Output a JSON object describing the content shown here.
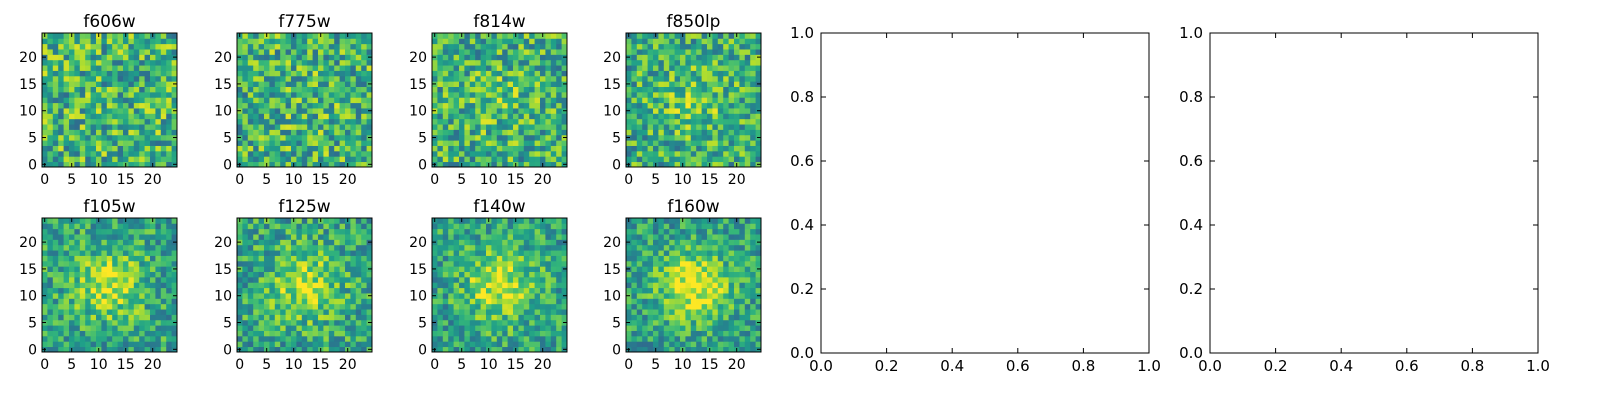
{
  "chart_data": [
    {
      "type": "heatmap",
      "title": "f606w",
      "x_ticks": [
        "0",
        "5",
        "10",
        "15",
        "20"
      ],
      "y_ticks": [
        "0",
        "5",
        "10",
        "15",
        "20"
      ],
      "xlim": [
        -0.5,
        24.5
      ],
      "ylim": [
        -0.5,
        24.5
      ],
      "colormap": "viridis",
      "grid": false,
      "value_seed": 11,
      "center_peak": 0.0
    },
    {
      "type": "heatmap",
      "title": "f775w",
      "x_ticks": [
        "0",
        "5",
        "10",
        "15",
        "20"
      ],
      "y_ticks": [
        "0",
        "5",
        "10",
        "15",
        "20"
      ],
      "xlim": [
        -0.5,
        24.5
      ],
      "ylim": [
        -0.5,
        24.5
      ],
      "colormap": "viridis",
      "grid": false,
      "value_seed": 23,
      "center_peak": 0.05
    },
    {
      "type": "heatmap",
      "title": "f814w",
      "x_ticks": [
        "0",
        "5",
        "10",
        "15",
        "20"
      ],
      "y_ticks": [
        "0",
        "5",
        "10",
        "15",
        "20"
      ],
      "xlim": [
        -0.5,
        24.5
      ],
      "ylim": [
        -0.5,
        24.5
      ],
      "colormap": "viridis",
      "grid": false,
      "value_seed": 37,
      "center_peak": 0.15
    },
    {
      "type": "heatmap",
      "title": "f850lp",
      "x_ticks": [
        "0",
        "5",
        "10",
        "15",
        "20"
      ],
      "y_ticks": [
        "0",
        "5",
        "10",
        "15",
        "20"
      ],
      "xlim": [
        -0.5,
        24.5
      ],
      "ylim": [
        -0.5,
        24.5
      ],
      "colormap": "viridis",
      "grid": false,
      "value_seed": 41,
      "center_peak": 0.25
    },
    {
      "type": "heatmap",
      "title": "f105w",
      "x_ticks": [
        "0",
        "5",
        "10",
        "15",
        "20"
      ],
      "y_ticks": [
        "0",
        "5",
        "10",
        "15",
        "20"
      ],
      "xlim": [
        -0.5,
        24.5
      ],
      "ylim": [
        -0.5,
        24.5
      ],
      "colormap": "viridis",
      "grid": false,
      "value_seed": 53,
      "center_peak": 0.55
    },
    {
      "type": "heatmap",
      "title": "f125w",
      "x_ticks": [
        "0",
        "5",
        "10",
        "15",
        "20"
      ],
      "y_ticks": [
        "0",
        "5",
        "10",
        "15",
        "20"
      ],
      "xlim": [
        -0.5,
        24.5
      ],
      "ylim": [
        -0.5,
        24.5
      ],
      "colormap": "viridis",
      "grid": false,
      "value_seed": 67,
      "center_peak": 0.5
    },
    {
      "type": "heatmap",
      "title": "f140w",
      "x_ticks": [
        "0",
        "5",
        "10",
        "15",
        "20"
      ],
      "y_ticks": [
        "0",
        "5",
        "10",
        "15",
        "20"
      ],
      "xlim": [
        -0.5,
        24.5
      ],
      "ylim": [
        -0.5,
        24.5
      ],
      "colormap": "viridis",
      "grid": false,
      "value_seed": 79,
      "center_peak": 0.6
    },
    {
      "type": "heatmap",
      "title": "f160w",
      "x_ticks": [
        "0",
        "5",
        "10",
        "15",
        "20"
      ],
      "y_ticks": [
        "0",
        "5",
        "10",
        "15",
        "20"
      ],
      "xlim": [
        -0.5,
        24.5
      ],
      "ylim": [
        -0.5,
        24.5
      ],
      "colormap": "viridis",
      "grid": false,
      "value_seed": 97,
      "center_peak": 0.7
    },
    {
      "type": "scatter",
      "title": "",
      "xlabel": "",
      "ylabel": "",
      "x": [],
      "y": [],
      "xlim": [
        0.0,
        1.0
      ],
      "ylim": [
        0.0,
        1.0
      ],
      "x_ticks": [
        "0.0",
        "0.2",
        "0.4",
        "0.6",
        "0.8",
        "1.0"
      ],
      "y_ticks": [
        "0.0",
        "0.2",
        "0.4",
        "0.6",
        "0.8",
        "1.0"
      ],
      "grid": false
    },
    {
      "type": "scatter",
      "title": "",
      "xlabel": "",
      "ylabel": "",
      "x": [],
      "y": [],
      "xlim": [
        0.0,
        1.0
      ],
      "ylim": [
        0.0,
        1.0
      ],
      "x_ticks": [
        "0.0",
        "0.2",
        "0.4",
        "0.6",
        "0.8",
        "1.0"
      ],
      "y_ticks": [
        "0.0",
        "0.2",
        "0.4",
        "0.6",
        "0.8",
        "1.0"
      ],
      "grid": false
    }
  ]
}
